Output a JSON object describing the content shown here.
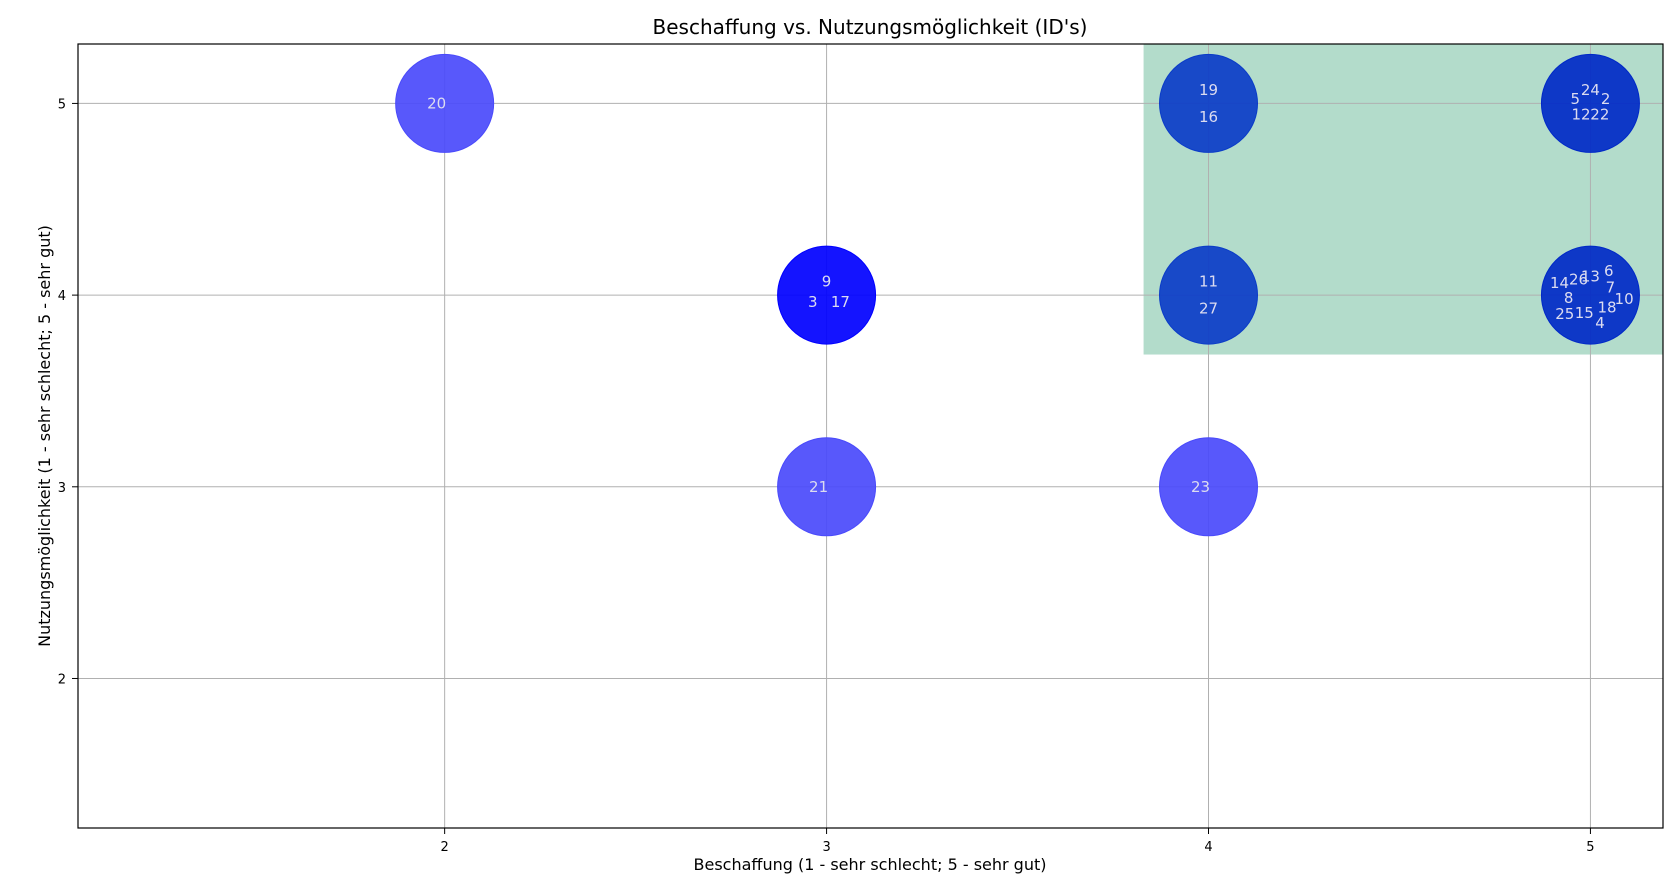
{
  "chart_data": {
    "type": "scatter",
    "title": "Beschaffung vs. Nutzungsmöglichkeit (ID's)",
    "xlabel": "Beschaffung (1 - sehr schlecht; 5 - sehr gut)",
    "ylabel": "Nutzungsmöglichkeit (1 - sehr schlecht; 5 - sehr gut)",
    "xlim": [
      1.04,
      5.19
    ],
    "ylim": [
      1.22,
      5.31
    ],
    "xticks": [
      "2",
      "3",
      "4",
      "5"
    ],
    "yticks": [
      "2",
      "3",
      "4",
      "5"
    ],
    "grid": true,
    "highlight_region": {
      "x": [
        3.83,
        5.19
      ],
      "y": [
        3.69,
        5.31
      ],
      "color": "#b3dccb"
    },
    "bubbles": [
      {
        "x": 2,
        "y": 5,
        "ids": [
          "20"
        ],
        "color": "#4a4afb"
      },
      {
        "x": 3,
        "y": 4,
        "ids": [
          "9",
          "17",
          "3"
        ],
        "color": "#0000ff"
      },
      {
        "x": 3,
        "y": 3,
        "ids": [
          "21"
        ],
        "color": "#4a4afb"
      },
      {
        "x": 4,
        "y": 5,
        "ids": [
          "19",
          "16"
        ],
        "color": "#0b3cc8"
      },
      {
        "x": 4,
        "y": 4,
        "ids": [
          "11",
          "27"
        ],
        "color": "#0b3cc8"
      },
      {
        "x": 4,
        "y": 3,
        "ids": [
          "23"
        ],
        "color": "#4a4afb"
      },
      {
        "x": 5,
        "y": 5,
        "ids": [
          "24",
          "2",
          "22",
          "12",
          "5"
        ],
        "color": "#0029c7"
      },
      {
        "x": 5,
        "y": 4,
        "ids": [
          "13",
          "6",
          "7",
          "10",
          "18",
          "4",
          "15",
          "25",
          "8",
          "14",
          "26"
        ],
        "color": "#0029c7"
      }
    ]
  }
}
